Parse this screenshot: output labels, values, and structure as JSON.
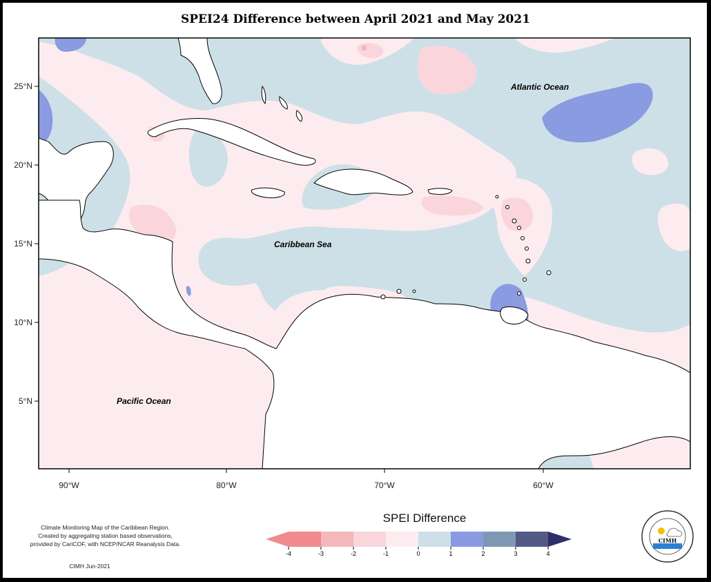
{
  "title": "SPEI24 Difference between April 2021 and May 2021",
  "axes": {
    "lat_ticks": [
      "25°N",
      "20°N",
      "15°N",
      "10°N",
      "5°N"
    ],
    "lon_ticks": [
      "90°W",
      "80°W",
      "70°W",
      "60°W"
    ]
  },
  "regions": {
    "atlantic": "Atlantic Ocean",
    "caribbean": "Caribbean Sea",
    "pacific": "Pacific Ocean"
  },
  "legend": {
    "title": "SPEI Difference",
    "ticks": [
      "-4",
      "-3",
      "-2",
      "-1",
      "0",
      "1",
      "2",
      "3",
      "4"
    ],
    "colors": [
      "#f08a8f",
      "#f2b8ba",
      "#fad6dc",
      "#fdecef",
      "#cde0e7",
      "#8a9be2",
      "#7e98b2",
      "#545a86",
      "#2d2f6a"
    ]
  },
  "notes": {
    "line1": "Climate Monitoring Map of the Caribbean Region.",
    "line2": "Created by aggregating station based observations,",
    "line3": "provided by CariCOF, with NCEP/NCAR Reanalysis Data.",
    "credit": "CIMH Jun-2021"
  },
  "logo": {
    "abbr": "CIMH",
    "ring_text": "Caribbean Institute for Meteorology and Hydrology"
  }
}
